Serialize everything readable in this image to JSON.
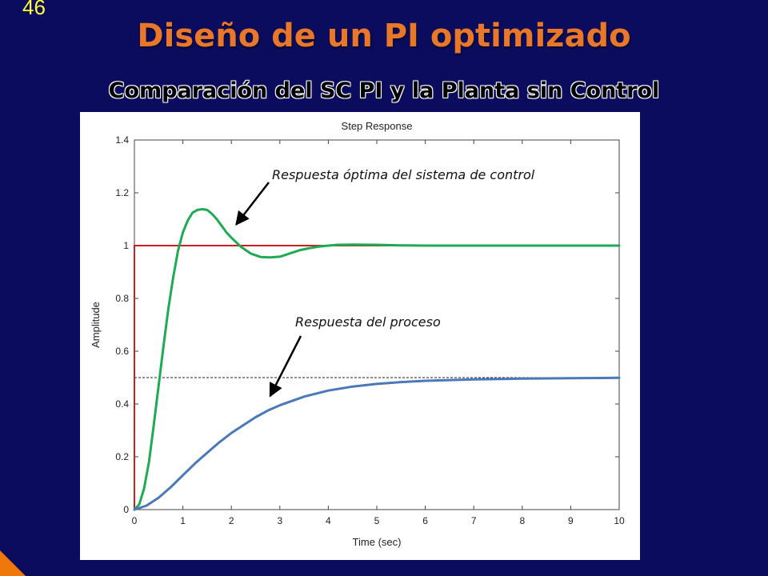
{
  "slide": {
    "number": "46",
    "title": "Diseño de un PI optimizado",
    "subtitle": "Comparación del SC PI y la Planta sin Control"
  },
  "colors": {
    "background": "#0c0c5e",
    "title": "#e8772a",
    "slide_number": "#ffff33",
    "controlled_response": "#1faa55",
    "process_response": "#4a78b8",
    "reference_line": "#cc1f1f",
    "accent_triangle": "#f0780a"
  },
  "chart_data": {
    "type": "line",
    "title": "Step Response",
    "xlabel": "Time (sec)",
    "ylabel": "Amplitude",
    "xlim": [
      0,
      10
    ],
    "ylim": [
      0,
      1.4
    ],
    "xticks": [
      "0",
      "1",
      "2",
      "3",
      "4",
      "5",
      "6",
      "7",
      "8",
      "9",
      "10"
    ],
    "yticks": [
      "0",
      "0.2",
      "0.4",
      "0.6",
      "0.8",
      "1",
      "1.2",
      "1.4"
    ],
    "reference_step": {
      "y": 1,
      "color": "#cc1f1f"
    },
    "dashed_line": {
      "y": 0.5
    },
    "series": [
      {
        "color": "#1faa55",
        "x": [
          0,
          0.1,
          0.2,
          0.3,
          0.4,
          0.5,
          0.6,
          0.7,
          0.8,
          0.9,
          1.0,
          1.1,
          1.2,
          1.3,
          1.4,
          1.5,
          1.6,
          1.7,
          1.8,
          1.9,
          2.0,
          2.2,
          2.4,
          2.6,
          2.8,
          3.0,
          3.2,
          3.4,
          3.6,
          3.8,
          4.0,
          4.2,
          4.5,
          5.0,
          5.5,
          6.0,
          7.0,
          8.0,
          9.0,
          10.0
        ],
        "y": [
          0,
          0.02,
          0.08,
          0.18,
          0.32,
          0.47,
          0.62,
          0.76,
          0.88,
          0.98,
          1.05,
          1.095,
          1.125,
          1.135,
          1.138,
          1.135,
          1.12,
          1.1,
          1.075,
          1.05,
          1.03,
          0.995,
          0.97,
          0.957,
          0.955,
          0.958,
          0.97,
          0.982,
          0.99,
          0.996,
          1.0,
          1.003,
          1.004,
          1.003,
          1.001,
          1.0,
          1.0,
          1.0,
          1.0,
          1.0
        ]
      },
      {
        "color": "#4a78b8",
        "x": [
          0,
          0.25,
          0.5,
          0.75,
          1.0,
          1.25,
          1.5,
          1.75,
          2.0,
          2.25,
          2.5,
          2.75,
          3.0,
          3.5,
          4.0,
          4.5,
          5.0,
          5.5,
          6.0,
          7.0,
          8.0,
          9.0,
          10.0
        ],
        "y": [
          0,
          0.015,
          0.045,
          0.085,
          0.13,
          0.175,
          0.215,
          0.255,
          0.29,
          0.32,
          0.35,
          0.375,
          0.395,
          0.428,
          0.451,
          0.466,
          0.476,
          0.483,
          0.488,
          0.493,
          0.496,
          0.498,
          0.499
        ]
      }
    ],
    "annotations": [
      {
        "text": "Respuesta óptima del sistema de control",
        "target": [
          2.1,
          1.08
        ]
      },
      {
        "text": "Respuesta del proceso",
        "target": [
          2.8,
          0.43
        ]
      }
    ]
  }
}
